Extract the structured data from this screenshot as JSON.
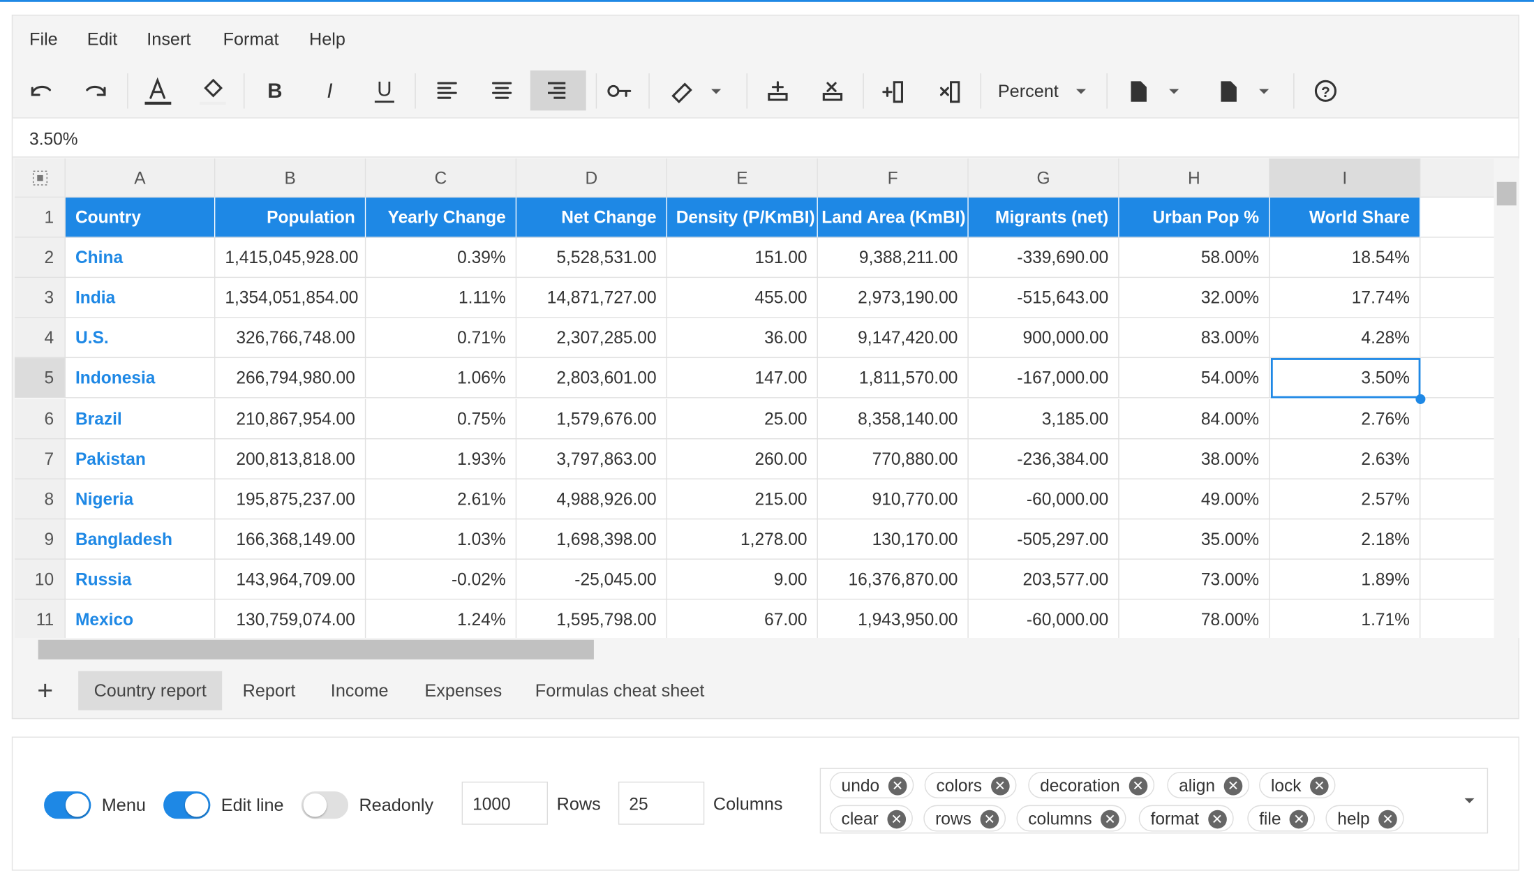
{
  "menu": [
    "File",
    "Edit",
    "Insert",
    "Format",
    "Help"
  ],
  "toolbar": {
    "format": "Percent"
  },
  "formula_bar": "3.50%",
  "grid": {
    "columns": [
      "A",
      "B",
      "C",
      "D",
      "E",
      "F",
      "G",
      "H",
      "I"
    ],
    "row_numbers": [
      "1",
      "2",
      "3",
      "4",
      "5",
      "6",
      "7",
      "8",
      "9",
      "10",
      "11"
    ],
    "rows": [
      [
        "Country",
        "Population",
        "Yearly Change",
        "Net Change",
        "Density (P/KmBI)",
        "Land Area (KmBI)",
        "Migrants (net)",
        "Urban Pop %",
        "World Share"
      ],
      [
        "China",
        "1,415,045,928.00",
        "0.39%",
        "5,528,531.00",
        "151.00",
        "9,388,211.00",
        "-339,690.00",
        "58.00%",
        "18.54%"
      ],
      [
        "India",
        "1,354,051,854.00",
        "1.11%",
        "14,871,727.00",
        "455.00",
        "2,973,190.00",
        "-515,643.00",
        "32.00%",
        "17.74%"
      ],
      [
        "U.S.",
        "326,766,748.00",
        "0.71%",
        "2,307,285.00",
        "36.00",
        "9,147,420.00",
        "900,000.00",
        "83.00%",
        "4.28%"
      ],
      [
        "Indonesia",
        "266,794,980.00",
        "1.06%",
        "2,803,601.00",
        "147.00",
        "1,811,570.00",
        "-167,000.00",
        "54.00%",
        "3.50%"
      ],
      [
        "Brazil",
        "210,867,954.00",
        "0.75%",
        "1,579,676.00",
        "25.00",
        "8,358,140.00",
        "3,185.00",
        "84.00%",
        "2.76%"
      ],
      [
        "Pakistan",
        "200,813,818.00",
        "1.93%",
        "3,797,863.00",
        "260.00",
        "770,880.00",
        "-236,384.00",
        "38.00%",
        "2.63%"
      ],
      [
        "Nigeria",
        "195,875,237.00",
        "2.61%",
        "4,988,926.00",
        "215.00",
        "910,770.00",
        "-60,000.00",
        "49.00%",
        "2.57%"
      ],
      [
        "Bangladesh",
        "166,368,149.00",
        "1.03%",
        "1,698,398.00",
        "1,278.00",
        "130,170.00",
        "-505,297.00",
        "35.00%",
        "2.18%"
      ],
      [
        "Russia",
        "143,964,709.00",
        "-0.02%",
        "-25,045.00",
        "9.00",
        "16,376,870.00",
        "203,577.00",
        "73.00%",
        "1.89%"
      ],
      [
        "Mexico",
        "130,759,074.00",
        "1.24%",
        "1,595,798.00",
        "67.00",
        "1,943,950.00",
        "-60,000.00",
        "78.00%",
        "1.71%"
      ]
    ]
  },
  "tabs": [
    "Country report",
    "Report",
    "Income",
    "Expenses",
    "Formulas cheat sheet"
  ],
  "controls": {
    "toggles": [
      {
        "label": "Menu",
        "on": true
      },
      {
        "label": "Edit line",
        "on": true
      },
      {
        "label": "Readonly",
        "on": false
      }
    ],
    "rows_input": "1000",
    "rows_label": "Rows",
    "columns_input": "25",
    "columns_label": "Columns",
    "tags": [
      "undo",
      "colors",
      "decoration",
      "align",
      "lock",
      "clear",
      "rows",
      "columns",
      "format",
      "file",
      "help"
    ]
  }
}
